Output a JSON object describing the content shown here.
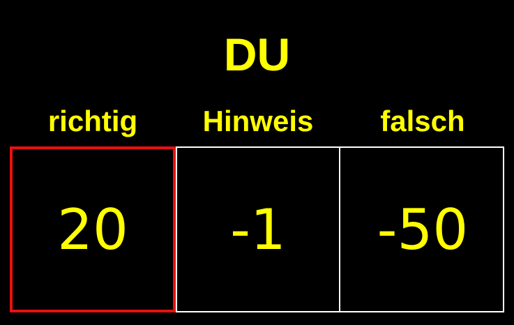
{
  "title": "DU",
  "columns": [
    {
      "label": "richtig",
      "value": "20",
      "selected": true
    },
    {
      "label": "Hinweis",
      "value": "-1",
      "selected": false
    },
    {
      "label": "falsch",
      "value": "-50",
      "selected": false
    }
  ],
  "colors": {
    "background": "#000000",
    "text": "#ffff00",
    "grid": "#ffffff",
    "selection": "#e8110f"
  }
}
